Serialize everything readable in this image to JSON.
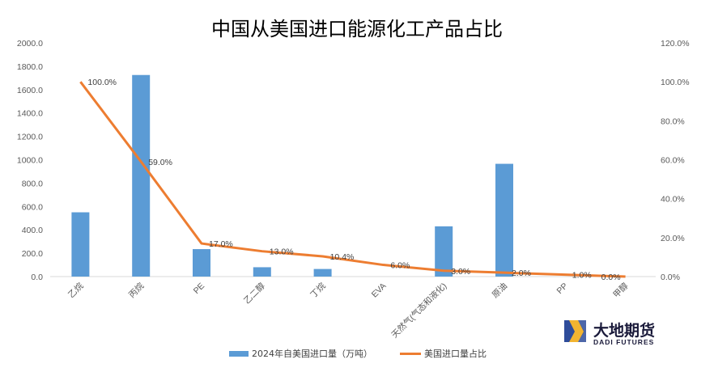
{
  "chart_data": {
    "type": "bar+line",
    "title": "中国从美国进口能源化工产品占比",
    "categories": [
      "乙烷",
      "丙烷",
      "PE",
      "乙二醇",
      "丁烷",
      "EVA",
      "天然气(气态和液化)",
      "原油",
      "PP",
      "甲醇"
    ],
    "series": [
      {
        "name": "2024年自美国进口量（万吨）",
        "type": "bar",
        "axis": "left",
        "color": "#5B9BD5",
        "values": [
          550,
          1725,
          235,
          80,
          65,
          0,
          430,
          965,
          0,
          0
        ]
      },
      {
        "name": "美国进口量占比",
        "type": "line",
        "axis": "right",
        "color": "#ED7D31",
        "values": [
          100.0,
          59.0,
          17.0,
          13.0,
          10.4,
          6.0,
          3.0,
          2.0,
          1.0,
          0.0
        ],
        "labels": [
          "100.0%",
          "59.0%",
          "17.0%",
          "13.0%",
          "10.4%",
          "6.0%",
          "3.0%",
          "2.0%",
          "1.0%",
          "0.0%"
        ]
      }
    ],
    "y_left": {
      "range": [
        0,
        2000
      ],
      "ticks": [
        "0.0",
        "200.0",
        "400.0",
        "600.0",
        "800.0",
        "1000.0",
        "1200.0",
        "1400.0",
        "1600.0",
        "1800.0",
        "2000.0"
      ]
    },
    "y_right": {
      "range": [
        0,
        120
      ],
      "ticks": [
        "0.0%",
        "20.0%",
        "40.0%",
        "60.0%",
        "80.0%",
        "100.0%",
        "120.0%"
      ]
    },
    "grid": false,
    "legend_position": "bottom"
  },
  "logo": {
    "name_cn": "大地期货",
    "name_en": "DADI FUTURES"
  }
}
